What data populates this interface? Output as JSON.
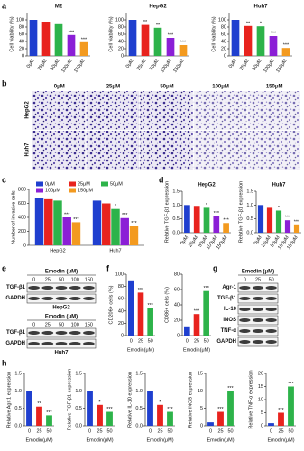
{
  "panel_labels": [
    "a",
    "b",
    "c",
    "d",
    "e",
    "f",
    "g",
    "h"
  ],
  "chart_data": [
    {
      "type": "bar",
      "title": "M2",
      "ylabel": "Cell viability (%)",
      "categories": [
        "0μM",
        "25μM",
        "50μM",
        "100μM",
        "150μM"
      ],
      "values": [
        100,
        95,
        88,
        58,
        38
      ],
      "significance": [
        null,
        null,
        null,
        "***",
        "***"
      ],
      "colors": [
        "#1f3fcf",
        "#e8231e",
        "#2db34a",
        "#8b1fd6",
        "#f39a1f"
      ],
      "ylim": [
        0,
        120
      ],
      "yticks": [
        0,
        20,
        40,
        60,
        80,
        100
      ]
    },
    {
      "type": "bar",
      "title": "HepG2",
      "ylabel": "Cell viability (%)",
      "categories": [
        "0μM",
        "25μM",
        "50μM",
        "100μM",
        "150μM"
      ],
      "values": [
        100,
        86,
        78,
        50,
        30
      ],
      "significance": [
        null,
        "**",
        "**",
        "***",
        "***"
      ],
      "colors": [
        "#1f3fcf",
        "#e8231e",
        "#2db34a",
        "#8b1fd6",
        "#f39a1f"
      ],
      "ylim": [
        0,
        120
      ],
      "yticks": [
        0,
        20,
        40,
        60,
        80,
        100
      ]
    },
    {
      "type": "bar",
      "title": "Huh7",
      "ylabel": "Cell viability (%)",
      "categories": [
        "0μM",
        "25μM",
        "50μM",
        "100μM",
        "150μM"
      ],
      "values": [
        100,
        83,
        82,
        55,
        22
      ],
      "significance": [
        null,
        "**",
        "*",
        "***",
        "***"
      ],
      "colors": [
        "#1f3fcf",
        "#e8231e",
        "#2db34a",
        "#8b1fd6",
        "#f39a1f"
      ],
      "ylim": [
        0,
        120
      ],
      "yticks": [
        0,
        20,
        40,
        60,
        80,
        100
      ]
    },
    {
      "type": "grouped_bar",
      "ylabel": "Number of invasive cells",
      "categories": [
        "HepG2",
        "Huh7"
      ],
      "ylim": [
        0,
        800
      ],
      "yticks": [
        0,
        200,
        400,
        600,
        800
      ],
      "legend": "top",
      "series": [
        {
          "name": "0μM",
          "color": "#1f3fcf",
          "values": [
            680,
            640
          ],
          "significance": [
            null,
            null
          ]
        },
        {
          "name": "25μM",
          "color": "#e8231e",
          "values": [
            660,
            600
          ],
          "significance": [
            null,
            null
          ]
        },
        {
          "name": "50μM",
          "color": "#2db34a",
          "values": [
            640,
            520
          ],
          "significance": [
            null,
            "*"
          ]
        },
        {
          "name": "100μM",
          "color": "#8b1fd6",
          "values": [
            400,
            390
          ],
          "significance": [
            "***",
            "***"
          ]
        },
        {
          "name": "150μM",
          "color": "#f39a1f",
          "values": [
            330,
            280
          ],
          "significance": [
            "***",
            "***"
          ]
        }
      ]
    },
    {
      "type": "bar",
      "title": "HepG2",
      "ylabel": "Relative TGF-β1 expression",
      "categories": [
        "0μM",
        "25μM",
        "50μM",
        "100μM",
        "150μM"
      ],
      "values": [
        1.0,
        0.97,
        0.9,
        0.6,
        0.35
      ],
      "significance": [
        null,
        null,
        "*",
        "***",
        "***"
      ],
      "colors": [
        "#1f3fcf",
        "#e8231e",
        "#2db34a",
        "#8b1fd6",
        "#f39a1f"
      ],
      "ylim": [
        0,
        1.5
      ],
      "yticks": [
        {
          "value": 0,
          "label": "0.0"
        },
        0.5,
        {
          "value": 1,
          "label": "1.0"
        },
        1.5
      ]
    },
    {
      "type": "bar",
      "title": "Huh7",
      "ylabel": "Relative TGF-β1 expression",
      "categories": [
        "0μM",
        "25μM",
        "50μM",
        "100μM",
        "150μM"
      ],
      "values": [
        1.0,
        0.9,
        0.8,
        0.45,
        0.3
      ],
      "significance": [
        null,
        null,
        "*",
        "***",
        "***"
      ],
      "colors": [
        "#1f3fcf",
        "#e8231e",
        "#2db34a",
        "#8b1fd6",
        "#f39a1f"
      ],
      "ylim": [
        0,
        1.5
      ],
      "yticks": [
        {
          "value": 0,
          "label": "0.0"
        },
        0.5,
        {
          "value": 1,
          "label": "1.0"
        },
        1.5
      ]
    },
    {
      "type": "bar",
      "ylabel": "CD206+ cells (%)",
      "xlabel": "Emodin(μM)",
      "categories": [
        "0",
        "25",
        "50"
      ],
      "values": [
        90,
        70,
        45
      ],
      "significance": [
        null,
        "***",
        "***"
      ],
      "colors": [
        "#1f3fcf",
        "#e8231e",
        "#2db34a"
      ],
      "ylim": [
        0,
        100
      ],
      "yticks": [
        0,
        20,
        40,
        60,
        80,
        100
      ]
    },
    {
      "type": "bar",
      "ylabel": "CD86+ cells (%)",
      "xlabel": "Emodin(μM)",
      "categories": [
        "0",
        "25",
        "50"
      ],
      "values": [
        12,
        28,
        58
      ],
      "significance": [
        null,
        "***",
        "***"
      ],
      "colors": [
        "#1f3fcf",
        "#e8231e",
        "#2db34a"
      ],
      "ylim": [
        0,
        80
      ],
      "yticks": [
        0,
        20,
        40,
        60,
        80
      ]
    },
    {
      "type": "bar",
      "ylabel": "Relative Agr-1 expression",
      "xlabel": "Emodin(μM)",
      "categories": [
        "0",
        "25",
        "50"
      ],
      "values": [
        1.0,
        0.55,
        0.3
      ],
      "significance": [
        null,
        "**",
        "***"
      ],
      "colors": [
        "#1f3fcf",
        "#e8231e",
        "#2db34a"
      ],
      "ylim": [
        0,
        1.5
      ],
      "yticks": [
        {
          "value": 0,
          "label": "0.0"
        },
        0.5,
        {
          "value": 1,
          "label": "1.0"
        },
        1.5
      ]
    },
    {
      "type": "bar",
      "ylabel": "Relative TGF-β1 expression",
      "xlabel": "Emodin(μM)",
      "categories": [
        "0",
        "25",
        "50"
      ],
      "values": [
        1.0,
        0.6,
        0.4
      ],
      "significance": [
        null,
        "*",
        "***"
      ],
      "colors": [
        "#1f3fcf",
        "#e8231e",
        "#2db34a"
      ],
      "ylim": [
        0,
        1.5
      ],
      "yticks": [
        {
          "value": 0,
          "label": "0.0"
        },
        0.5,
        {
          "value": 1,
          "label": "1.0"
        },
        1.5
      ]
    },
    {
      "type": "bar",
      "ylabel": "Relative IL-10 expression",
      "xlabel": "Emodin(μM)",
      "categories": [
        "0",
        "25",
        "50"
      ],
      "values": [
        1.0,
        0.6,
        0.4
      ],
      "significance": [
        null,
        "*",
        "***"
      ],
      "colors": [
        "#1f3fcf",
        "#e8231e",
        "#2db34a"
      ],
      "ylim": [
        0,
        1.5
      ],
      "yticks": [
        {
          "value": 0,
          "label": "0.0"
        },
        0.5,
        {
          "value": 1,
          "label": "1.0"
        },
        1.5
      ]
    },
    {
      "type": "bar",
      "ylabel": "Relative iNOS expression",
      "xlabel": "Emodin(μM)",
      "categories": [
        "0",
        "25",
        "50"
      ],
      "values": [
        1,
        4,
        10
      ],
      "significance": [
        null,
        "***",
        "***"
      ],
      "colors": [
        "#1f3fcf",
        "#e8231e",
        "#2db34a"
      ],
      "ylim": [
        0,
        15
      ],
      "yticks": [
        0,
        5,
        10,
        15
      ]
    },
    {
      "type": "bar",
      "ylabel": "Relative TNF-α expression",
      "xlabel": "Emodin(μM)",
      "categories": [
        "0",
        "25",
        "50"
      ],
      "values": [
        1,
        5,
        15
      ],
      "significance": [
        null,
        "***",
        "***"
      ],
      "colors": [
        "#1f3fcf",
        "#e8231e",
        "#2db34a"
      ],
      "ylim": [
        0,
        20
      ],
      "yticks": [
        0,
        5,
        10,
        15,
        20
      ]
    }
  ],
  "micrographs": {
    "columns": [
      "0μM",
      "25μM",
      "50μM",
      "100μM",
      "150μM"
    ],
    "rows": [
      "HepG2",
      "Huh7"
    ]
  },
  "blots_e": [
    {
      "header": "Emodin (μM)",
      "lanes": [
        "0",
        "25",
        "50",
        "100",
        "150"
      ],
      "bands": [
        "TGF-β1",
        "GAPDH"
      ],
      "cell": "HepG2"
    },
    {
      "header": "Emodin (μM)",
      "lanes": [
        "0",
        "25",
        "50",
        "100",
        "150"
      ],
      "bands": [
        "TGF-β1",
        "GAPDH"
      ],
      "cell": "Huh7"
    }
  ],
  "blot_g": {
    "header": "Emodin (μM)",
    "lanes": [
      "0",
      "25",
      "50"
    ],
    "bands": [
      "Agr-1",
      "TGF-β1",
      "IL-10",
      "iNOS",
      "TNF-α",
      "GAPDH"
    ]
  }
}
